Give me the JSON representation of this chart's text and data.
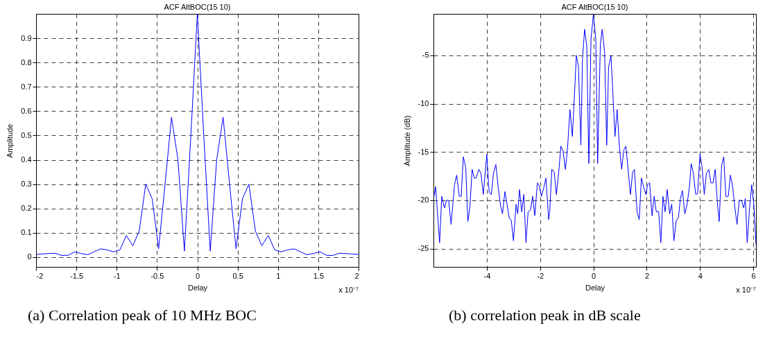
{
  "chart_data": [
    {
      "type": "line",
      "title": "ACF AltBOC(15 10)",
      "xlabel": "Delay",
      "ylabel": "Amplitude",
      "color": "#0000ff",
      "line_style": "solid",
      "grid": true,
      "x": [
        -2,
        -1.92,
        -1.84,
        -1.76,
        -1.68,
        -1.6,
        -1.52,
        -1.44,
        -1.36,
        -1.28,
        -1.2,
        -1.12,
        -1.04,
        -0.96,
        -0.88,
        -0.8,
        -0.72,
        -0.64,
        -0.56,
        -0.48,
        -0.4,
        -0.32,
        -0.24,
        -0.16,
        -0.08,
        0,
        0.08,
        0.16,
        0.24,
        0.32,
        0.4,
        0.48,
        0.56,
        0.64,
        0.72,
        0.8,
        0.88,
        0.96,
        1.04,
        1.12,
        1.2,
        1.28,
        1.36,
        1.44,
        1.52,
        1.6,
        1.68,
        1.76,
        1.84,
        1.92,
        2
      ],
      "values": [
        0.011,
        0.013,
        0.015,
        0.016,
        0.007,
        0.008,
        0.022,
        0.015,
        0.01,
        0.022,
        0.034,
        0.03,
        0.022,
        0.03,
        0.089,
        0.047,
        0.108,
        0.3,
        0.24,
        0.035,
        0.3,
        0.575,
        0.4,
        0.025,
        0.5,
        1,
        0.5,
        0.025,
        0.4,
        0.575,
        0.3,
        0.035,
        0.24,
        0.3,
        0.108,
        0.047,
        0.089,
        0.03,
        0.022,
        0.03,
        0.034,
        0.022,
        0.01,
        0.015,
        0.022,
        0.008,
        0.007,
        0.016,
        0.015,
        0.013,
        0.011
      ],
      "xlim": [
        -2,
        2
      ],
      "ylim": [
        -0.04,
        1
      ],
      "xticks": [
        -2,
        -1.5,
        -1,
        -0.5,
        0,
        0.5,
        1,
        1.5,
        2
      ],
      "yticks": [
        0,
        0.1,
        0.2,
        0.3,
        0.4,
        0.5,
        0.6,
        0.7,
        0.8,
        0.9
      ],
      "annotations": [
        "x 10⁻⁷",
        "(a) Correlation peak of 10 MHz BOC"
      ]
    },
    {
      "type": "line",
      "title": "ACF AltBOC(15 10)",
      "xlabel": "Delay",
      "ylabel": "Amplitude (dB)",
      "color": "#0000ff",
      "line_style": "solid",
      "grid": true,
      "x": [
        -5.98,
        -5.92,
        -5.77,
        -5.69,
        -5.59,
        -5.51,
        -5.43,
        -5.34,
        -5.21,
        -5.13,
        -5.03,
        -4.96,
        -4.88,
        -4.79,
        -4.71,
        -4.63,
        -4.55,
        -4.47,
        -4.4,
        -4.3,
        -4.22,
        -4.13,
        -4,
        -3.91,
        -3.83,
        -3.75,
        -3.66,
        -3.57,
        -3.48,
        -3.41,
        -3.32,
        -3.24,
        -3.16,
        -3.08,
        -3,
        -2.9,
        -2.84,
        -2.77,
        -2.69,
        -2.61,
        -2.53,
        -2.45,
        -2.36,
        -2.28,
        -2.2,
        -2.1,
        -2.03,
        -1.95,
        -1.86,
        -1.78,
        -1.68,
        -1.64,
        -1.56,
        -1.47,
        -1.39,
        -1.3,
        -1.22,
        -1.14,
        -1.05,
        -0.97,
        -0.88,
        -0.79,
        -0.72,
        -0.64,
        -0.56,
        -0.47,
        -0.41,
        -0.33,
        -0.25,
        -0.17,
        -0.09,
        0,
        0.09,
        0.16,
        0.26,
        0.33,
        0.42,
        0.5,
        0.57,
        0.66,
        0.81,
        0.89,
        0.98,
        1.06,
        1.14,
        1.22,
        1.39,
        1.47,
        1.54,
        1.64,
        1.72,
        1.8,
        1.89,
        1.97,
        2.03,
        2.11,
        2.2,
        2.28,
        2.36,
        2.45,
        2.53,
        2.61,
        2.69,
        2.77,
        2.86,
        2.94,
        3.02,
        3.11,
        3.19,
        3.26,
        3.34,
        3.43,
        3.51,
        3.6,
        3.67,
        3.75,
        3.84,
        3.91,
        4,
        4.08,
        4.16,
        4.24,
        4.33,
        4.41,
        4.49,
        4.57,
        4.65,
        4.72,
        4.81,
        4.89,
        4.97,
        5.06,
        5.14,
        5.22,
        5.31,
        5.39,
        5.47,
        5.56,
        5.64,
        5.7,
        5.77,
        5.86,
        5.94,
        6.02,
        6.1
      ],
      "values": [
        -19.6,
        -18.6,
        -24.4,
        -19.6,
        -20.8,
        -20,
        -20,
        -22.5,
        -18.4,
        -17.4,
        -19.6,
        -19.6,
        -15.5,
        -16.6,
        -22.2,
        -20.6,
        -16.8,
        -17.7,
        -17.7,
        -16.8,
        -17.2,
        -19.4,
        -15.3,
        -19.2,
        -19.4,
        -17.2,
        -16.3,
        -18.7,
        -20.6,
        -21.4,
        -19.1,
        -20.4,
        -21.8,
        -22.1,
        -24.2,
        -20.4,
        -21.4,
        -18.9,
        -21.2,
        -19.4,
        -24.4,
        -21.2,
        -21,
        -19.6,
        -21.6,
        -18.2,
        -18.5,
        -19.6,
        -18.7,
        -17.7,
        -22,
        -21.2,
        -16.8,
        -17.1,
        -19.4,
        -17.1,
        -14.4,
        -14.9,
        -16.8,
        -14.6,
        -10.6,
        -13.4,
        -9.6,
        -5,
        -6.2,
        -14.3,
        -5.4,
        -2.3,
        -4,
        -16.2,
        -3.3,
        -0.75,
        -3.3,
        -16.2,
        -3.9,
        -2.3,
        -4.6,
        -14.3,
        -6.2,
        -5,
        -13.4,
        -10.6,
        -14.6,
        -16.8,
        -14.8,
        -14.4,
        -19.4,
        -17.1,
        -16.8,
        -21.2,
        -22,
        -17.7,
        -18.7,
        -19.4,
        -18.4,
        -18.2,
        -21.6,
        -19.6,
        -21.2,
        -21.2,
        -24.4,
        -19.6,
        -21.2,
        -18.9,
        -21.4,
        -20.4,
        -24.2,
        -22.1,
        -21.8,
        -19.9,
        -19,
        -21.4,
        -20.5,
        -18.7,
        -16.2,
        -17.2,
        -19.4,
        -19.3,
        -15.2,
        -16.6,
        -19.4,
        -17.2,
        -16.8,
        -18.2,
        -18.2,
        -16.8,
        -20.2,
        -22.2,
        -16.4,
        -15.5,
        -19.6,
        -19.6,
        -17.4,
        -18.5,
        -20.8,
        -22.5,
        -20,
        -20,
        -20.8,
        -19.8,
        -24.4,
        -20.8,
        -18.4,
        -20.5,
        -24.6
      ],
      "xlim": [
        -6,
        6.1
      ],
      "ylim": [
        -26.9,
        -0.7
      ],
      "xticks": [
        -4,
        -2,
        0,
        2,
        4,
        6
      ],
      "yticks": [
        -25,
        -20,
        -15,
        -10,
        -5
      ],
      "annotations": [
        "x 10⁻⁷",
        "(b) correlation peak in dB scale"
      ]
    }
  ]
}
